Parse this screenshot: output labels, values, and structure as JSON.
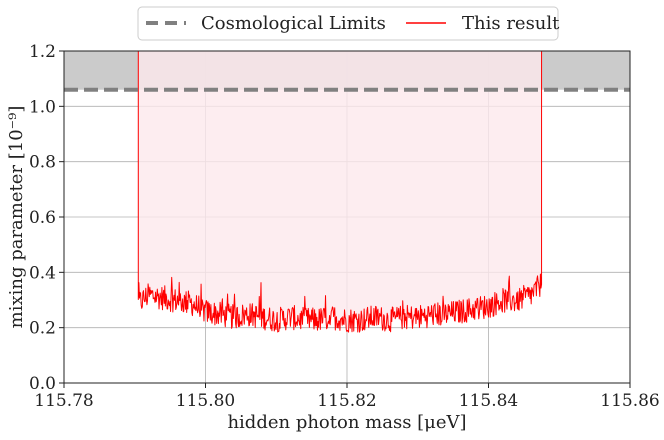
{
  "chart_data": {
    "type": "line",
    "xlabel": "hidden photon mass [μeV]",
    "ylabel": "mixing parameter [10⁻⁹]",
    "xlim": [
      115.78,
      115.86
    ],
    "ylim": [
      0.0,
      1.2
    ],
    "xticks": [
      115.78,
      115.8,
      115.82,
      115.84,
      115.86
    ],
    "xtick_labels": [
      "115.78",
      "115.80",
      "115.82",
      "115.84",
      "115.86"
    ],
    "yticks": [
      0.0,
      0.2,
      0.4,
      0.6,
      0.8,
      1.0,
      1.2
    ],
    "ytick_labels": [
      "0.0",
      "0.2",
      "0.4",
      "0.6",
      "0.8",
      "1.0",
      "1.2"
    ],
    "grid": true,
    "legend_position": "top-center, above plot",
    "series": [
      {
        "name": "Cosmological Limits",
        "style": "dashed",
        "color": "#808080",
        "y_constant": 1.06,
        "shaded_region": [
          1.06,
          1.2
        ],
        "shade_color": "#c8c8c8"
      },
      {
        "name": "This result",
        "style": "solid",
        "color": "#ff0000",
        "fill_color": "#fde8ec",
        "x_range": [
          115.7905,
          115.8475
        ],
        "edge_top": 1.2,
        "x": [
          115.7905,
          115.792,
          115.794,
          115.796,
          115.798,
          115.8,
          115.802,
          115.804,
          115.806,
          115.808,
          115.81,
          115.812,
          115.814,
          115.816,
          115.818,
          115.82,
          115.822,
          115.824,
          115.826,
          115.828,
          115.83,
          115.832,
          115.834,
          115.836,
          115.838,
          115.84,
          115.842,
          115.844,
          115.846,
          115.8475
        ],
        "y": [
          0.27,
          0.3,
          0.29,
          0.28,
          0.27,
          0.24,
          0.23,
          0.22,
          0.23,
          0.22,
          0.21,
          0.22,
          0.21,
          0.21,
          0.22,
          0.21,
          0.21,
          0.22,
          0.21,
          0.22,
          0.22,
          0.23,
          0.23,
          0.24,
          0.25,
          0.26,
          0.28,
          0.28,
          0.3,
          0.34
        ]
      }
    ]
  },
  "colors": {
    "axis": "#222222",
    "grid": "#b0b0b0"
  }
}
